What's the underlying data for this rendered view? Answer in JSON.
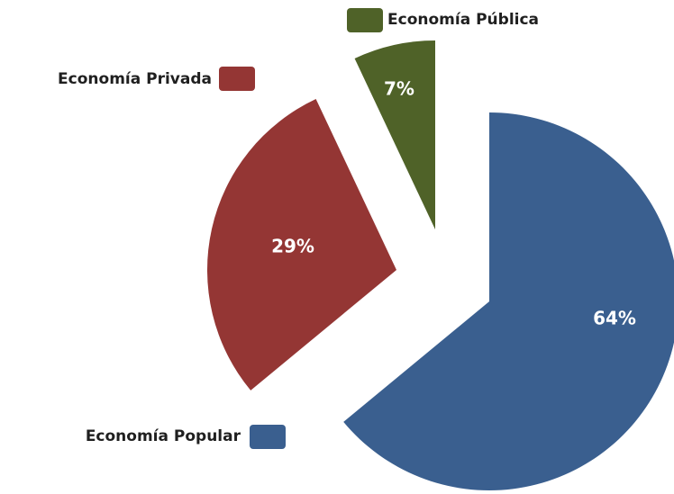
{
  "chart_data": {
    "type": "pie",
    "categories": [
      "Economía Popular",
      "Economía Privada",
      "Economía Pública"
    ],
    "values": [
      64,
      29,
      7
    ],
    "value_labels": [
      "64%",
      "29%",
      "7%"
    ],
    "colors": [
      "#3a5f8f",
      "#943634",
      "#4f6228"
    ]
  }
}
